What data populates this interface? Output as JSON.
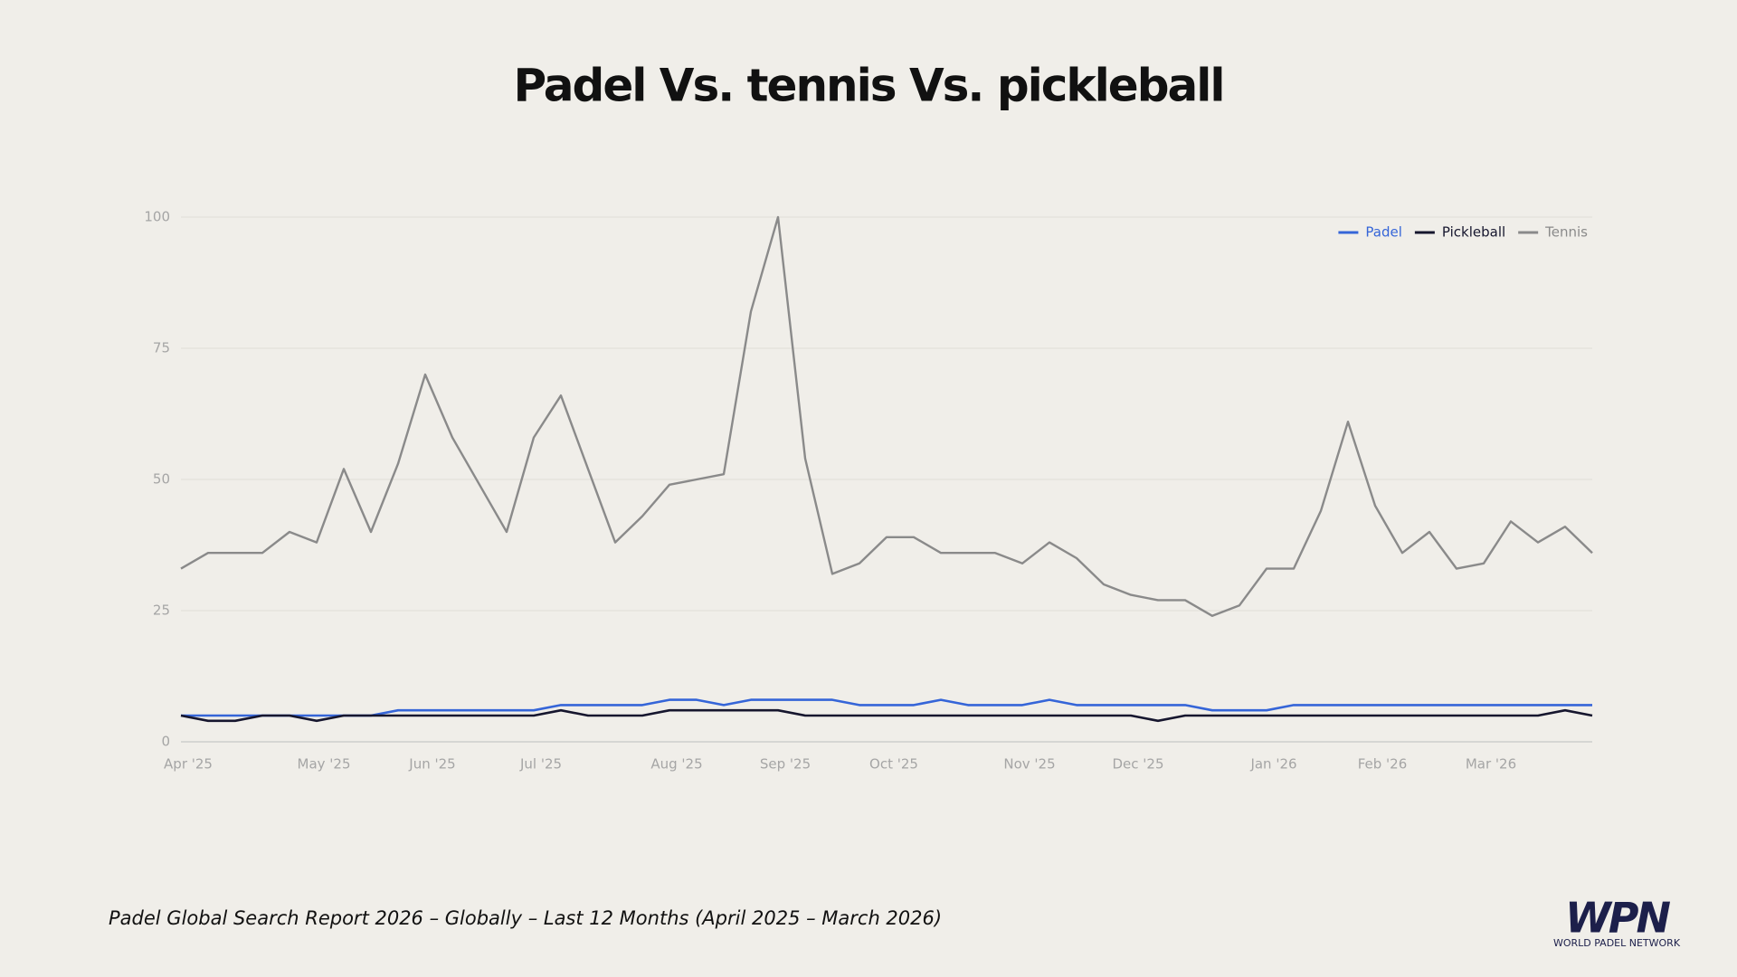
{
  "chart_data": {
    "type": "line",
    "title": "Padel Vs. tennis Vs. pickleball",
    "categories": [
      "Apr '25",
      null,
      null,
      null,
      null,
      "May '25",
      null,
      null,
      null,
      "Jun '25",
      null,
      null,
      null,
      "Jul '25",
      null,
      null,
      null,
      null,
      "Aug '25",
      null,
      null,
      null,
      "Sep '25",
      null,
      null,
      null,
      "Oct '25",
      null,
      null,
      null,
      null,
      "Nov '25",
      null,
      null,
      null,
      "Dec '25",
      null,
      null,
      null,
      null,
      "Jan '26",
      null,
      null,
      null,
      "Feb '26",
      null,
      null,
      null,
      "Mar '26",
      null,
      null,
      null,
      null
    ],
    "series": [
      {
        "name": "Padel",
        "color": "#3565d8",
        "values": [
          5,
          5,
          5,
          5,
          5,
          5,
          5,
          5,
          6,
          6,
          6,
          6,
          6,
          6,
          7,
          7,
          7,
          7,
          8,
          8,
          7,
          8,
          8,
          8,
          8,
          7,
          7,
          7,
          8,
          7,
          7,
          7,
          8,
          7,
          7,
          7,
          7,
          7,
          6,
          6,
          6,
          7,
          7,
          7,
          7,
          7,
          7,
          7,
          7,
          7,
          7,
          7,
          7
        ]
      },
      {
        "name": "Pickleball",
        "color": "#16162e",
        "values": [
          5,
          4,
          4,
          5,
          5,
          4,
          5,
          5,
          5,
          5,
          5,
          5,
          5,
          5,
          6,
          5,
          5,
          5,
          6,
          6,
          6,
          6,
          6,
          5,
          5,
          5,
          5,
          5,
          5,
          5,
          5,
          5,
          5,
          5,
          5,
          5,
          4,
          5,
          5,
          5,
          5,
          5,
          5,
          5,
          5,
          5,
          5,
          5,
          5,
          5,
          5,
          6,
          5
        ]
      },
      {
        "name": "Tennis",
        "color": "#8a8a8a",
        "values": [
          33,
          36,
          36,
          36,
          40,
          38,
          52,
          40,
          53,
          70,
          58,
          49,
          40,
          58,
          66,
          52,
          38,
          43,
          49,
          50,
          51,
          82,
          100,
          54,
          32,
          34,
          39,
          39,
          36,
          36,
          36,
          34,
          38,
          35,
          30,
          28,
          27,
          27,
          24,
          26,
          33,
          33,
          44,
          61,
          45,
          36,
          40,
          33,
          34,
          42,
          38,
          41,
          36
        ]
      }
    ],
    "ylim": [
      0,
      100
    ],
    "yticks": [
      0,
      25,
      50,
      75,
      100
    ],
    "grid": true,
    "legend": "upper right"
  },
  "footer": "Padel Global Search Report 2026 – Globally – Last 12 Months (April 2025 – March 2026)",
  "logo": {
    "mark": "WPN",
    "text": "WORLD PADEL NETWORK"
  }
}
